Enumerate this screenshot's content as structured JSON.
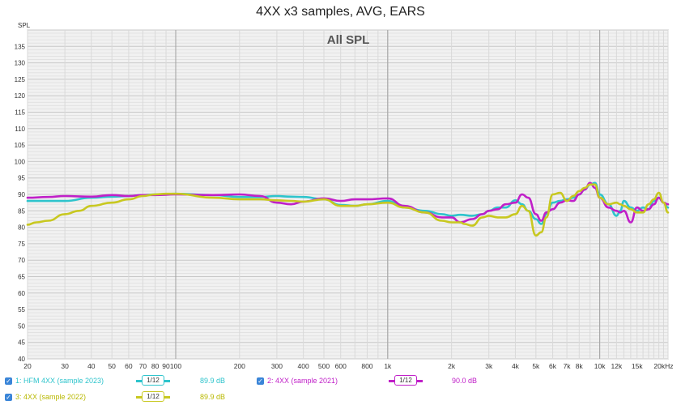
{
  "chart_data": {
    "type": "line",
    "title": "4XX x3 samples, AVG, EARS",
    "subtitle": "All SPL",
    "ylabel": "SPL",
    "xscale": "log",
    "xlim": [
      20,
      21000
    ],
    "ylim": [
      40,
      140
    ],
    "yticks": [
      40,
      45,
      50,
      55,
      60,
      65,
      70,
      75,
      80,
      85,
      90,
      95,
      100,
      105,
      110,
      115,
      120,
      125,
      130,
      135
    ],
    "xticks": [
      {
        "v": 20,
        "label": "20"
      },
      {
        "v": 30,
        "label": "30"
      },
      {
        "v": 40,
        "label": "40"
      },
      {
        "v": 50,
        "label": "50"
      },
      {
        "v": 60,
        "label": "60"
      },
      {
        "v": 70,
        "label": "70"
      },
      {
        "v": 80,
        "label": "80"
      },
      {
        "v": 90,
        "label": "90"
      },
      {
        "v": 100,
        "label": "100"
      },
      {
        "v": 200,
        "label": "200"
      },
      {
        "v": 300,
        "label": "300"
      },
      {
        "v": 400,
        "label": "400"
      },
      {
        "v": 500,
        "label": "500"
      },
      {
        "v": 600,
        "label": "600"
      },
      {
        "v": 800,
        "label": "800"
      },
      {
        "v": 1000,
        "label": "1k"
      },
      {
        "v": 2000,
        "label": "2k"
      },
      {
        "v": 3000,
        "label": "3k"
      },
      {
        "v": 4000,
        "label": "4k"
      },
      {
        "v": 5000,
        "label": "5k"
      },
      {
        "v": 6000,
        "label": "6k"
      },
      {
        "v": 7000,
        "label": "7k"
      },
      {
        "v": 8000,
        "label": "8k"
      },
      {
        "v": 10000,
        "label": "10k"
      },
      {
        "v": 12000,
        "label": "12k"
      },
      {
        "v": 15000,
        "label": "15k"
      },
      {
        "v": 20000,
        "label": "20kHz"
      }
    ],
    "grid": true,
    "series": [
      {
        "name": "1: HFM 4XX (sample 2023)",
        "color": "#2ec4cc",
        "smoothing": "1/12",
        "level": "89.9 dB",
        "x": [
          20,
          25,
          30,
          40,
          50,
          60,
          70,
          80,
          100,
          150,
          200,
          250,
          300,
          350,
          400,
          500,
          600,
          700,
          800,
          1000,
          1200,
          1500,
          1800,
          2000,
          2200,
          2500,
          2800,
          3000,
          3300,
          3600,
          4000,
          4300,
          4600,
          5000,
          5300,
          5600,
          6000,
          6500,
          7000,
          7500,
          8000,
          8500,
          9000,
          9500,
          10000,
          11000,
          12000,
          12500,
          13000,
          14000,
          15000,
          16000,
          17000,
          18000,
          19000,
          20000,
          21000
        ],
        "y": [
          88,
          88,
          88,
          89,
          89.3,
          89.5,
          89.8,
          90,
          90.2,
          89.8,
          89.2,
          89.2,
          89.5,
          89.3,
          89.2,
          88.5,
          86.8,
          86.5,
          87,
          88,
          86,
          85,
          84,
          83.5,
          83.8,
          83.5,
          84,
          85,
          86,
          86,
          88.2,
          87,
          85,
          82.5,
          81,
          84,
          87.5,
          88,
          88.5,
          89,
          90,
          91.5,
          93,
          93.5,
          90,
          87,
          83.5,
          85,
          88,
          86,
          85,
          86,
          85.5,
          88,
          89,
          87.5,
          86
        ]
      },
      {
        "name": "2: 4XX (sample 2021)",
        "color": "#c020c8",
        "smoothing": "1/12",
        "level": "90.0 dB",
        "x": [
          20,
          25,
          30,
          40,
          50,
          60,
          70,
          80,
          100,
          150,
          200,
          250,
          300,
          350,
          400,
          500,
          600,
          700,
          800,
          1000,
          1200,
          1500,
          1800,
          2000,
          2200,
          2500,
          2800,
          3000,
          3300,
          3600,
          4000,
          4300,
          4600,
          5000,
          5300,
          5600,
          6000,
          6500,
          7000,
          7500,
          8000,
          8500,
          9000,
          9500,
          10000,
          11000,
          12000,
          12500,
          13000,
          14000,
          15000,
          16000,
          17000,
          18000,
          19000,
          20000,
          21000
        ],
        "y": [
          89,
          89.2,
          89.5,
          89.3,
          89.8,
          89.5,
          89.8,
          89.8,
          90,
          89.8,
          90,
          89.5,
          87.5,
          87,
          87.8,
          88.8,
          88,
          88.5,
          88.5,
          88.8,
          86.5,
          84.5,
          83,
          83,
          81.5,
          82.5,
          84,
          85,
          85.5,
          87,
          87.5,
          90,
          89,
          84,
          82,
          84.5,
          85.5,
          87.5,
          88.2,
          88,
          90,
          91.5,
          93.5,
          92,
          89,
          86,
          85,
          84.5,
          85,
          81.5,
          86,
          85,
          85.5,
          87,
          89,
          87.5,
          87
        ]
      },
      {
        "name": "3: 4XX (sample 2022)",
        "color": "#c8c820",
        "smoothing": "1/12",
        "level": "89.9 dB",
        "x": [
          20,
          22,
          25,
          30,
          35,
          40,
          50,
          60,
          70,
          80,
          90,
          100,
          150,
          200,
          250,
          300,
          350,
          400,
          500,
          600,
          700,
          800,
          1000,
          1200,
          1500,
          1800,
          2000,
          2200,
          2300,
          2500,
          2800,
          3000,
          3300,
          3600,
          4000,
          4300,
          4600,
          5000,
          5300,
          5600,
          6000,
          6500,
          7000,
          7500,
          8000,
          8500,
          9000,
          9500,
          10000,
          11000,
          12000,
          12500,
          13000,
          14000,
          15000,
          16000,
          17000,
          18000,
          19000,
          20000,
          21000
        ],
        "y": [
          80.8,
          81.5,
          82,
          84,
          85,
          86.5,
          87.5,
          88.5,
          89.5,
          90,
          90.2,
          90.2,
          89,
          88.5,
          88.5,
          88.2,
          88,
          87.8,
          88.5,
          86.5,
          86.5,
          87,
          87.5,
          86,
          84.5,
          82,
          81.5,
          81.5,
          81,
          80.5,
          83,
          83.5,
          83,
          83,
          84,
          86.5,
          85,
          77.5,
          78.5,
          83,
          90,
          90.5,
          88,
          89.5,
          91,
          92,
          93,
          93,
          89,
          87,
          87.5,
          87,
          86.5,
          85.5,
          84.5,
          84.5,
          87,
          88.5,
          90.5,
          87.5,
          84.5
        ]
      }
    ]
  }
}
